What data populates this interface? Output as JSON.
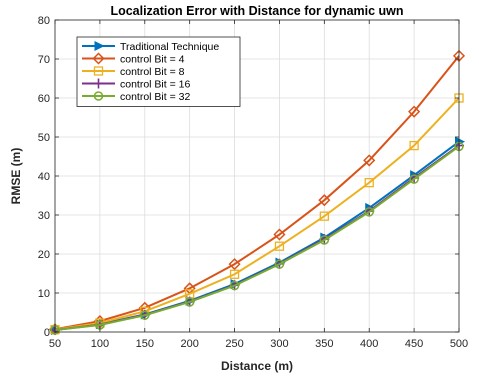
{
  "chart_data": {
    "type": "line",
    "title": "Localization Error with Distance for dynamic uwn",
    "xlabel": "Distance (m)",
    "ylabel": "RMSE (m)",
    "xlim": [
      50,
      500
    ],
    "ylim": [
      0,
      80
    ],
    "xticks": [
      50,
      100,
      150,
      200,
      250,
      300,
      350,
      400,
      450,
      500
    ],
    "yticks": [
      0,
      10,
      20,
      30,
      40,
      50,
      60,
      70,
      80
    ],
    "grid": true,
    "legend_position": "top-left",
    "x": [
      50,
      100,
      150,
      200,
      250,
      300,
      350,
      400,
      450,
      500
    ],
    "series": [
      {
        "name": "Traditional Technique",
        "color": "#0072BD",
        "marker": "triangle-right",
        "values": [
          0.5,
          2.0,
          4.5,
          8.0,
          12.3,
          17.8,
          24.2,
          31.8,
          40.2,
          48.8
        ]
      },
      {
        "name": "control Bit = 4",
        "color": "#D95319",
        "marker": "diamond",
        "values": [
          0.7,
          2.8,
          6.2,
          11.2,
          17.4,
          25.0,
          33.8,
          44.0,
          56.5,
          70.8
        ]
      },
      {
        "name": "control Bit = 8",
        "color": "#EDB120",
        "marker": "square",
        "values": [
          0.6,
          2.3,
          5.3,
          9.8,
          14.8,
          22.0,
          29.7,
          38.3,
          47.8,
          60.0
        ]
      },
      {
        "name": "control Bit = 16",
        "color": "#7E2F8E",
        "marker": "plus",
        "values": [
          0.5,
          1.9,
          4.4,
          7.8,
          12.0,
          17.5,
          23.8,
          31.0,
          39.5,
          47.8
        ]
      },
      {
        "name": "control Bit = 32",
        "color": "#77AC30",
        "marker": "circle",
        "values": [
          0.5,
          1.8,
          4.3,
          7.7,
          11.9,
          17.4,
          23.6,
          30.8,
          39.2,
          47.6
        ]
      }
    ]
  }
}
